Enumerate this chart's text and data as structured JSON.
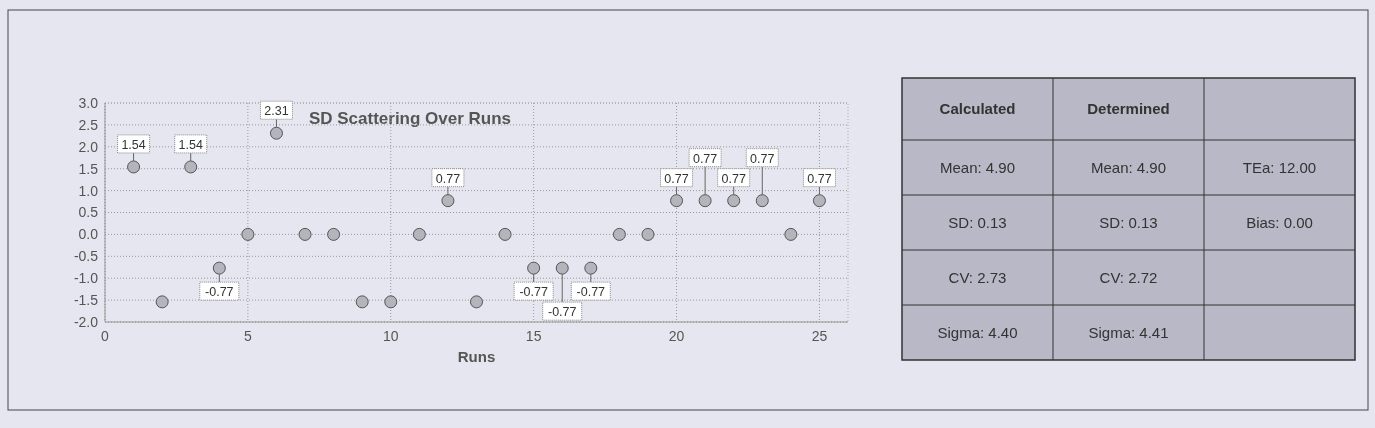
{
  "chart_data": [
    {
      "type": "scatter",
      "title": "SD Scattering Over Runs",
      "xlabel": "Runs",
      "x": [
        1,
        2,
        3,
        4,
        5,
        6,
        7,
        8,
        9,
        10,
        11,
        12,
        13,
        14,
        15,
        16,
        17,
        18,
        19,
        20,
        21,
        22,
        23,
        24,
        25
      ],
      "series": [
        {
          "color": "#b4b4bc",
          "values": [
            1.54,
            -1.54,
            1.54,
            -0.77,
            0,
            2.31,
            0,
            0,
            -1.54,
            -1.54,
            0,
            0.77,
            -1.54,
            0,
            -0.77,
            -0.77,
            -0.77,
            0,
            0,
            0.77,
            0.77,
            0.77,
            0.77,
            0,
            0.77
          ],
          "value_labels": [
            "1.54",
            null,
            "1.54",
            "-0.77",
            null,
            "2.31",
            null,
            null,
            null,
            null,
            null,
            "0.77",
            null,
            null,
            "-0.77",
            "-0.77",
            "-0.77",
            null,
            null,
            "0.77",
            "0.77",
            "0.77",
            "0.77",
            null,
            "0.77"
          ]
        }
      ],
      "xlim": [
        0,
        26
      ],
      "xticks": [
        0,
        5,
        10,
        15,
        20,
        25
      ],
      "ylim": [
        -2,
        3
      ],
      "yticks": [
        {
          "value": -2,
          "label": "-2.0"
        },
        {
          "value": -1.5,
          "label": "-1.5"
        },
        {
          "value": -1,
          "label": "-1.0"
        },
        {
          "value": -0.5,
          "label": "-0.5"
        },
        {
          "value": 0,
          "label": "0.0"
        },
        {
          "value": 0.5,
          "label": "0.5"
        },
        {
          "value": 1,
          "label": "1.0"
        },
        {
          "value": 1.5,
          "label": "1.5"
        },
        {
          "value": 2,
          "label": "2.0"
        },
        {
          "value": 2.5,
          "label": "2.5"
        },
        {
          "value": 3,
          "label": "3.0"
        }
      ],
      "grid": true,
      "marker": "circle"
    },
    {
      "type": "other",
      "categories": [
        "Calculated",
        "Determined",
        null
      ],
      "cell_labels": [
        [
          "Mean: 4.90",
          "Mean: 4.90",
          "TEa: 12.00"
        ],
        [
          "SD: 0.13",
          "SD: 0.13",
          "Bias: 0.00"
        ],
        [
          "CV: 2.73",
          "CV: 2.72",
          null
        ],
        [
          "Sigma: 4.40",
          "Sigma: 4.41",
          null
        ]
      ]
    }
  ]
}
